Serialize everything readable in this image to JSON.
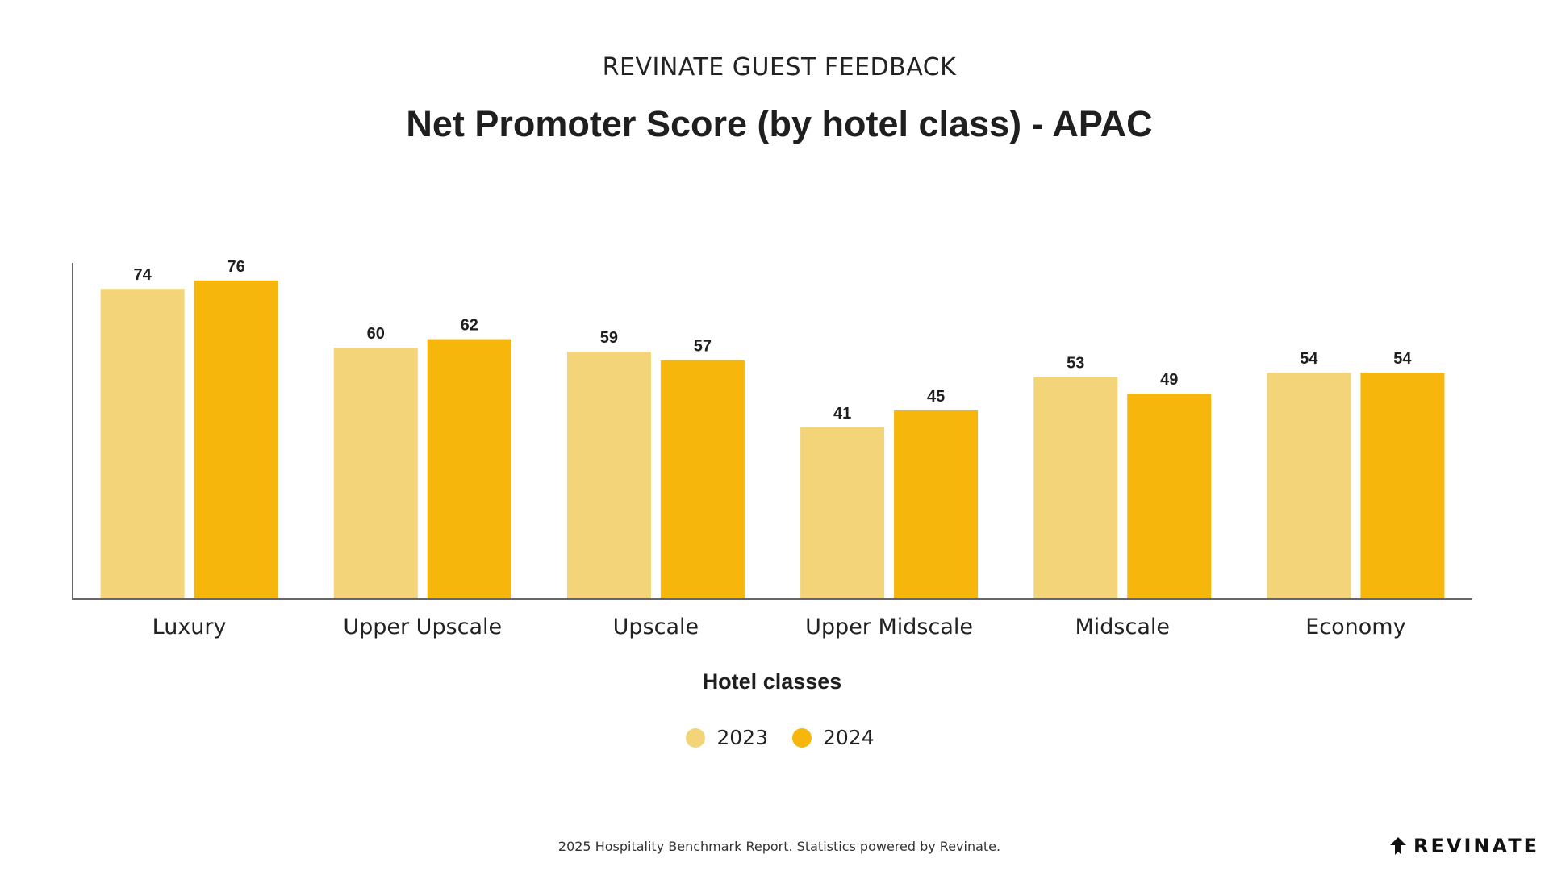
{
  "header": {
    "supertitle": "REVINATE GUEST FEEDBACK",
    "title": "Net Promoter Score (by hotel class) - APAC"
  },
  "footer": {
    "note": "2025 Hospitality Benchmark Report. Statistics powered by Revinate.",
    "brand": "REVINATE",
    "brand_icon": "revinate-logo-icon"
  },
  "colors": {
    "2023": "#F3D478",
    "2024": "#F6B60B",
    "axis": "#666666",
    "label": "#1f1f1f"
  },
  "chart_data": {
    "type": "bar",
    "title": "Net Promoter Score (by hotel class) - APAC",
    "xlabel": "Hotel classes",
    "ylabel": "",
    "categories": [
      "Luxury",
      "Upper Upscale",
      "Upscale",
      "Upper Midscale",
      "Midscale",
      "Economy"
    ],
    "series": [
      {
        "name": "2023",
        "values": [
          74,
          60,
          59,
          41,
          53,
          54
        ]
      },
      {
        "name": "2024",
        "values": [
          76,
          62,
          57,
          45,
          49,
          54
        ]
      }
    ],
    "ylim": [
      0,
      80
    ],
    "grid": false,
    "legend": "bottom-center",
    "data_labels": true
  }
}
